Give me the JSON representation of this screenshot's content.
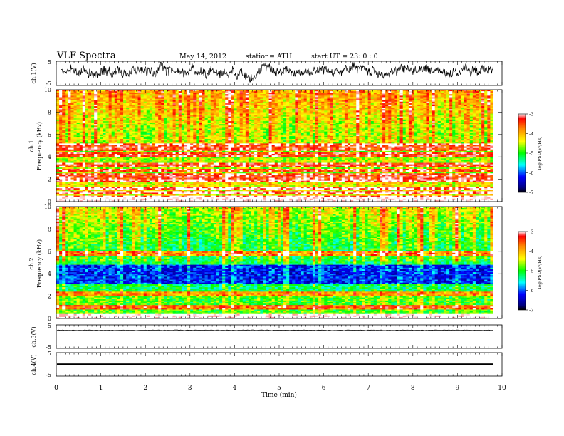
{
  "header": {
    "title": "VLF  Spectra",
    "date": "May 14,  2012",
    "station": "station= ATH",
    "start": "start  UT  =    23: 0  : 0"
  },
  "chart_data": [
    {
      "type": "line",
      "panel": "ch1-waveform",
      "ylabel": "ch.1(V)",
      "ylim": [
        -5,
        5
      ],
      "yticks": [
        "5",
        "-5"
      ],
      "xlim": [
        0,
        10
      ],
      "series_color": "#000000",
      "trace": "dense noisy waveform mostly between about -4 and 4 V"
    },
    {
      "type": "heatmap",
      "panel": "ch1-spectrogram",
      "ylabel": "ch.1",
      "ylabel2": "Frequency  (kHz)",
      "ylim": [
        0,
        10
      ],
      "yticks": [
        "0",
        "2",
        "4",
        "6",
        "8",
        "10"
      ],
      "xlim": [
        0,
        9.8
      ],
      "colorbar": {
        "label": "log(PSD(V²/Hz)",
        "ticks": [
          "-3",
          "-4",
          "-5",
          "-6",
          "-7"
        ],
        "range": [
          -7,
          -3
        ],
        "colormap": "rainbow"
      },
      "intense_bands_khz": [
        0.3,
        0.8,
        1.2,
        1.9,
        2.3,
        2.8,
        3.3,
        4.2,
        4.7,
        5.0
      ],
      "upper_background_level": -4.3
    },
    {
      "type": "heatmap",
      "panel": "ch2-spectrogram",
      "ylabel": "ch.2",
      "ylabel2": "Frequency  (kHz)",
      "ylim": [
        0,
        10
      ],
      "yticks": [
        "0",
        "2",
        "4",
        "6",
        "8",
        "10"
      ],
      "xlim": [
        0,
        9.8
      ],
      "colorbar": {
        "label": "log(PSD(V²/Hz)",
        "ticks": [
          "-3",
          "-4",
          "-5",
          "-6",
          "-7"
        ],
        "range": [
          -7,
          -3
        ],
        "colormap": "rainbow"
      },
      "intense_bands_khz": [
        0.2,
        1.0,
        2.2,
        5.8
      ],
      "low_band_khz": [
        3.0,
        4.8
      ],
      "upper_background_level": -4.8
    },
    {
      "type": "line",
      "panel": "ch3-waveform",
      "ylabel": "ch.3(V)",
      "ylim": [
        -5,
        5
      ],
      "yticks": [
        "5",
        "-5"
      ],
      "xlim": [
        0,
        10
      ],
      "series_color": "#000000",
      "trace": "flat line near 3 V"
    },
    {
      "type": "line",
      "panel": "ch4-waveform",
      "ylabel": "ch.4(V)",
      "ylim": [
        -5,
        5
      ],
      "yticks": [
        "5",
        "-5"
      ],
      "xlim": [
        0,
        10
      ],
      "series_color": "#000000",
      "trace": "thick band near 0 V"
    }
  ],
  "xaxis": {
    "label": "Time  (min)",
    "ticks": [
      "0",
      "1",
      "2",
      "3",
      "4",
      "5",
      "6",
      "7",
      "8",
      "9",
      "10"
    ],
    "xlim": [
      0,
      10
    ]
  }
}
